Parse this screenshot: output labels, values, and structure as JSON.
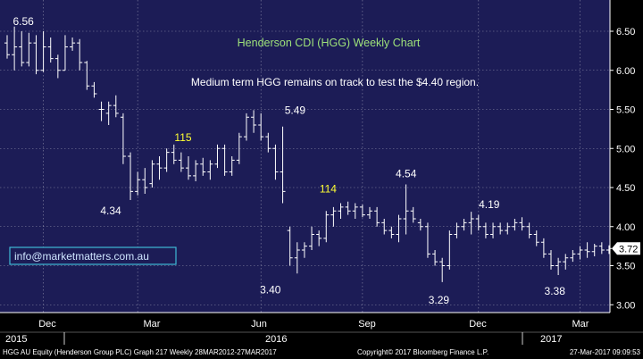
{
  "chart_data": {
    "type": "ohlc",
    "title": "Henderson CDI (HGG) Weekly Chart",
    "subtitle": "Medium term HGG remains on track to test the $4.40 region.",
    "ylim": [
      2.9,
      6.9
    ],
    "y_ticks": [
      "3.00",
      "3.50",
      "4.00",
      "4.50",
      "5.00",
      "5.50",
      "6.00",
      "6.50"
    ],
    "y_tick_values": [
      3.0,
      3.5,
      4.0,
      4.5,
      5.0,
      5.5,
      6.0,
      6.5
    ],
    "x_month_labels": [
      "Dec",
      "Mar",
      "Jun",
      "Sep",
      "Dec",
      "Mar"
    ],
    "x_year_labels": [
      "2015",
      "2016",
      "2017"
    ],
    "last_price": "3.72",
    "watermark": "info@marketmatters.com.au",
    "colors": {
      "background": "#1c1c56",
      "bars": "#ffffff",
      "title": "#9ee27a",
      "yellow_labels": "#ffff33",
      "price_tag_bg": "#ffffff",
      "watermark_border": "#3fb8d6",
      "watermark_text": "#cfe6ff"
    },
    "annotations": [
      {
        "text": "6.56",
        "x": 1,
        "y": 6.56,
        "color": "white"
      },
      {
        "text": "4.34",
        "x": 17,
        "y": 4.34,
        "color": "white"
      },
      {
        "text": "115",
        "x": 25,
        "y": 4.98,
        "color": "yellow"
      },
      {
        "text": "5.49",
        "x": 37,
        "y": 5.49,
        "color": "white"
      },
      {
        "text": "3.40",
        "x": 40,
        "y": 3.4,
        "color": "white"
      },
      {
        "text": "114",
        "x": 45,
        "y": 4.28,
        "color": "yellow"
      },
      {
        "text": "4.54",
        "x": 56,
        "y": 4.54,
        "color": "white"
      },
      {
        "text": "3.29",
        "x": 62,
        "y": 3.29,
        "color": "white"
      },
      {
        "text": "4.19",
        "x": 65,
        "y": 4.19,
        "color": "white"
      },
      {
        "text": "3.38",
        "x": 77,
        "y": 3.38,
        "color": "white"
      }
    ],
    "bars": [
      {
        "x": 0,
        "o": 6.35,
        "h": 6.45,
        "l": 6.15,
        "c": 6.2
      },
      {
        "x": 1,
        "o": 6.2,
        "h": 6.56,
        "l": 6.0,
        "c": 6.3
      },
      {
        "x": 2,
        "o": 6.3,
        "h": 6.5,
        "l": 6.05,
        "c": 6.1
      },
      {
        "x": 3,
        "o": 6.1,
        "h": 6.48,
        "l": 6.05,
        "c": 6.35
      },
      {
        "x": 4,
        "o": 6.35,
        "h": 6.45,
        "l": 5.95,
        "c": 6.0
      },
      {
        "x": 5,
        "o": 6.0,
        "h": 6.5,
        "l": 5.98,
        "c": 6.3
      },
      {
        "x": 6,
        "o": 6.3,
        "h": 6.42,
        "l": 6.1,
        "c": 6.15
      },
      {
        "x": 7,
        "o": 6.15,
        "h": 6.2,
        "l": 5.9,
        "c": 6.0
      },
      {
        "x": 8,
        "o": 6.0,
        "h": 6.45,
        "l": 6.0,
        "c": 6.3
      },
      {
        "x": 9,
        "o": 6.3,
        "h": 6.42,
        "l": 6.25,
        "c": 6.35
      },
      {
        "x": 10,
        "o": 6.35,
        "h": 6.4,
        "l": 6.0,
        "c": 6.1
      },
      {
        "x": 11,
        "o": 6.1,
        "h": 6.12,
        "l": 5.75,
        "c": 5.8
      },
      {
        "x": 12,
        "o": 5.8,
        "h": 5.85,
        "l": 5.65,
        "c": 5.7
      },
      {
        "x": 13,
        "o": 5.5,
        "h": 5.6,
        "l": 5.35,
        "c": 5.5
      },
      {
        "x": 14,
        "o": 5.45,
        "h": 5.6,
        "l": 5.3,
        "c": 5.55
      },
      {
        "x": 15,
        "o": 5.55,
        "h": 5.68,
        "l": 5.4,
        "c": 5.45
      },
      {
        "x": 16,
        "o": 5.4,
        "h": 5.45,
        "l": 4.8,
        "c": 4.9
      },
      {
        "x": 17,
        "o": 4.9,
        "h": 4.95,
        "l": 4.34,
        "c": 4.45
      },
      {
        "x": 18,
        "o": 4.45,
        "h": 4.7,
        "l": 4.4,
        "c": 4.6
      },
      {
        "x": 19,
        "o": 4.6,
        "h": 4.75,
        "l": 4.42,
        "c": 4.5
      },
      {
        "x": 20,
        "o": 4.55,
        "h": 4.85,
        "l": 4.5,
        "c": 4.8
      },
      {
        "x": 21,
        "o": 4.8,
        "h": 4.9,
        "l": 4.6,
        "c": 4.75
      },
      {
        "x": 22,
        "o": 4.75,
        "h": 5.0,
        "l": 4.7,
        "c": 4.95
      },
      {
        "x": 23,
        "o": 4.95,
        "h": 5.05,
        "l": 4.8,
        "c": 4.85
      },
      {
        "x": 24,
        "o": 4.85,
        "h": 4.95,
        "l": 4.7,
        "c": 4.75
      },
      {
        "x": 25,
        "o": 4.75,
        "h": 4.9,
        "l": 4.6,
        "c": 4.65
      },
      {
        "x": 26,
        "o": 4.65,
        "h": 4.85,
        "l": 4.58,
        "c": 4.8
      },
      {
        "x": 27,
        "o": 4.8,
        "h": 4.88,
        "l": 4.65,
        "c": 4.7
      },
      {
        "x": 28,
        "o": 4.7,
        "h": 4.85,
        "l": 4.6,
        "c": 4.8
      },
      {
        "x": 29,
        "o": 4.8,
        "h": 5.05,
        "l": 4.75,
        "c": 5.0
      },
      {
        "x": 30,
        "o": 5.0,
        "h": 5.05,
        "l": 4.65,
        "c": 4.7
      },
      {
        "x": 31,
        "o": 4.7,
        "h": 4.9,
        "l": 4.65,
        "c": 4.85
      },
      {
        "x": 32,
        "o": 4.85,
        "h": 5.2,
        "l": 4.8,
        "c": 5.15
      },
      {
        "x": 33,
        "o": 5.15,
        "h": 5.45,
        "l": 5.1,
        "c": 5.4
      },
      {
        "x": 34,
        "o": 5.4,
        "h": 5.49,
        "l": 5.2,
        "c": 5.3
      },
      {
        "x": 35,
        "o": 5.3,
        "h": 5.45,
        "l": 5.1,
        "c": 5.15
      },
      {
        "x": 36,
        "o": 5.15,
        "h": 5.2,
        "l": 4.95,
        "c": 5.0
      },
      {
        "x": 37,
        "o": 5.0,
        "h": 5.05,
        "l": 4.6,
        "c": 4.7
      },
      {
        "x": 38,
        "o": 4.7,
        "h": 5.28,
        "l": 4.3,
        "c": 4.45
      },
      {
        "x": 39,
        "o": 3.95,
        "h": 4.0,
        "l": 3.5,
        "c": 3.6
      },
      {
        "x": 40,
        "o": 3.6,
        "h": 3.8,
        "l": 3.4,
        "c": 3.7
      },
      {
        "x": 41,
        "o": 3.7,
        "h": 3.8,
        "l": 3.6,
        "c": 3.75
      },
      {
        "x": 42,
        "o": 3.75,
        "h": 4.0,
        "l": 3.7,
        "c": 3.9
      },
      {
        "x": 43,
        "o": 3.9,
        "h": 3.95,
        "l": 3.75,
        "c": 3.85
      },
      {
        "x": 44,
        "o": 3.85,
        "h": 4.2,
        "l": 3.8,
        "c": 4.15
      },
      {
        "x": 45,
        "o": 4.15,
        "h": 4.25,
        "l": 4.0,
        "c": 4.2
      },
      {
        "x": 46,
        "o": 4.2,
        "h": 4.3,
        "l": 4.1,
        "c": 4.25
      },
      {
        "x": 47,
        "o": 4.25,
        "h": 4.32,
        "l": 4.15,
        "c": 4.2
      },
      {
        "x": 48,
        "o": 4.2,
        "h": 4.3,
        "l": 4.1,
        "c": 4.25
      },
      {
        "x": 49,
        "o": 4.25,
        "h": 4.28,
        "l": 4.12,
        "c": 4.15
      },
      {
        "x": 50,
        "o": 4.15,
        "h": 4.25,
        "l": 4.1,
        "c": 4.2
      },
      {
        "x": 51,
        "o": 4.2,
        "h": 4.25,
        "l": 4.0,
        "c": 4.05
      },
      {
        "x": 52,
        "o": 4.05,
        "h": 4.1,
        "l": 3.9,
        "c": 3.95
      },
      {
        "x": 53,
        "o": 3.95,
        "h": 4.0,
        "l": 3.85,
        "c": 3.9
      },
      {
        "x": 54,
        "o": 3.9,
        "h": 4.15,
        "l": 3.8,
        "c": 4.1
      },
      {
        "x": 55,
        "o": 4.1,
        "h": 4.54,
        "l": 3.9,
        "c": 4.2
      },
      {
        "x": 56,
        "o": 4.2,
        "h": 4.25,
        "l": 4.05,
        "c": 4.1
      },
      {
        "x": 57,
        "o": 4.05,
        "h": 4.1,
        "l": 3.95,
        "c": 4.0
      },
      {
        "x": 58,
        "o": 4.0,
        "h": 4.05,
        "l": 3.6,
        "c": 3.65
      },
      {
        "x": 59,
        "o": 3.65,
        "h": 3.7,
        "l": 3.5,
        "c": 3.55
      },
      {
        "x": 60,
        "o": 3.55,
        "h": 3.6,
        "l": 3.29,
        "c": 3.5
      },
      {
        "x": 61,
        "o": 3.5,
        "h": 3.95,
        "l": 3.45,
        "c": 3.9
      },
      {
        "x": 62,
        "o": 3.9,
        "h": 4.05,
        "l": 3.85,
        "c": 4.0
      },
      {
        "x": 63,
        "o": 4.0,
        "h": 4.1,
        "l": 3.95,
        "c": 4.05
      },
      {
        "x": 64,
        "o": 4.05,
        "h": 4.19,
        "l": 3.9,
        "c": 4.1
      },
      {
        "x": 65,
        "o": 4.1,
        "h": 4.15,
        "l": 3.95,
        "c": 4.0
      },
      {
        "x": 66,
        "o": 4.0,
        "h": 4.05,
        "l": 3.85,
        "c": 3.9
      },
      {
        "x": 67,
        "o": 3.9,
        "h": 4.05,
        "l": 3.85,
        "c": 4.0
      },
      {
        "x": 68,
        "o": 4.0,
        "h": 4.05,
        "l": 3.9,
        "c": 3.95
      },
      {
        "x": 69,
        "o": 3.95,
        "h": 4.05,
        "l": 3.9,
        "c": 4.0
      },
      {
        "x": 70,
        "o": 4.0,
        "h": 4.1,
        "l": 3.95,
        "c": 4.05
      },
      {
        "x": 71,
        "o": 4.05,
        "h": 4.12,
        "l": 3.95,
        "c": 4.0
      },
      {
        "x": 72,
        "o": 4.0,
        "h": 4.05,
        "l": 3.85,
        "c": 3.9
      },
      {
        "x": 73,
        "o": 3.9,
        "h": 3.95,
        "l": 3.75,
        "c": 3.8
      },
      {
        "x": 74,
        "o": 3.8,
        "h": 3.85,
        "l": 3.6,
        "c": 3.65
      },
      {
        "x": 75,
        "o": 3.65,
        "h": 3.7,
        "l": 3.45,
        "c": 3.5
      },
      {
        "x": 76,
        "o": 3.5,
        "h": 3.6,
        "l": 3.38,
        "c": 3.55
      },
      {
        "x": 77,
        "o": 3.55,
        "h": 3.65,
        "l": 3.45,
        "c": 3.6
      },
      {
        "x": 78,
        "o": 3.6,
        "h": 3.7,
        "l": 3.55,
        "c": 3.65
      },
      {
        "x": 79,
        "o": 3.65,
        "h": 3.75,
        "l": 3.58,
        "c": 3.7
      },
      {
        "x": 80,
        "o": 3.7,
        "h": 3.8,
        "l": 3.6,
        "c": 3.68
      },
      {
        "x": 81,
        "o": 3.68,
        "h": 3.78,
        "l": 3.62,
        "c": 3.75
      },
      {
        "x": 82,
        "o": 3.75,
        "h": 3.8,
        "l": 3.65,
        "c": 3.7
      },
      {
        "x": 83,
        "o": 3.7,
        "h": 3.76,
        "l": 3.65,
        "c": 3.72
      }
    ]
  },
  "footer": {
    "left": "HGG AU Equity (Henderson Group PLC) Graph 217  Weekly 28MAR2012-27MAR2017",
    "center": "Copyright© 2017 Bloomberg Finance L.P.",
    "right": "27-Mar-2017 09:09:53"
  }
}
